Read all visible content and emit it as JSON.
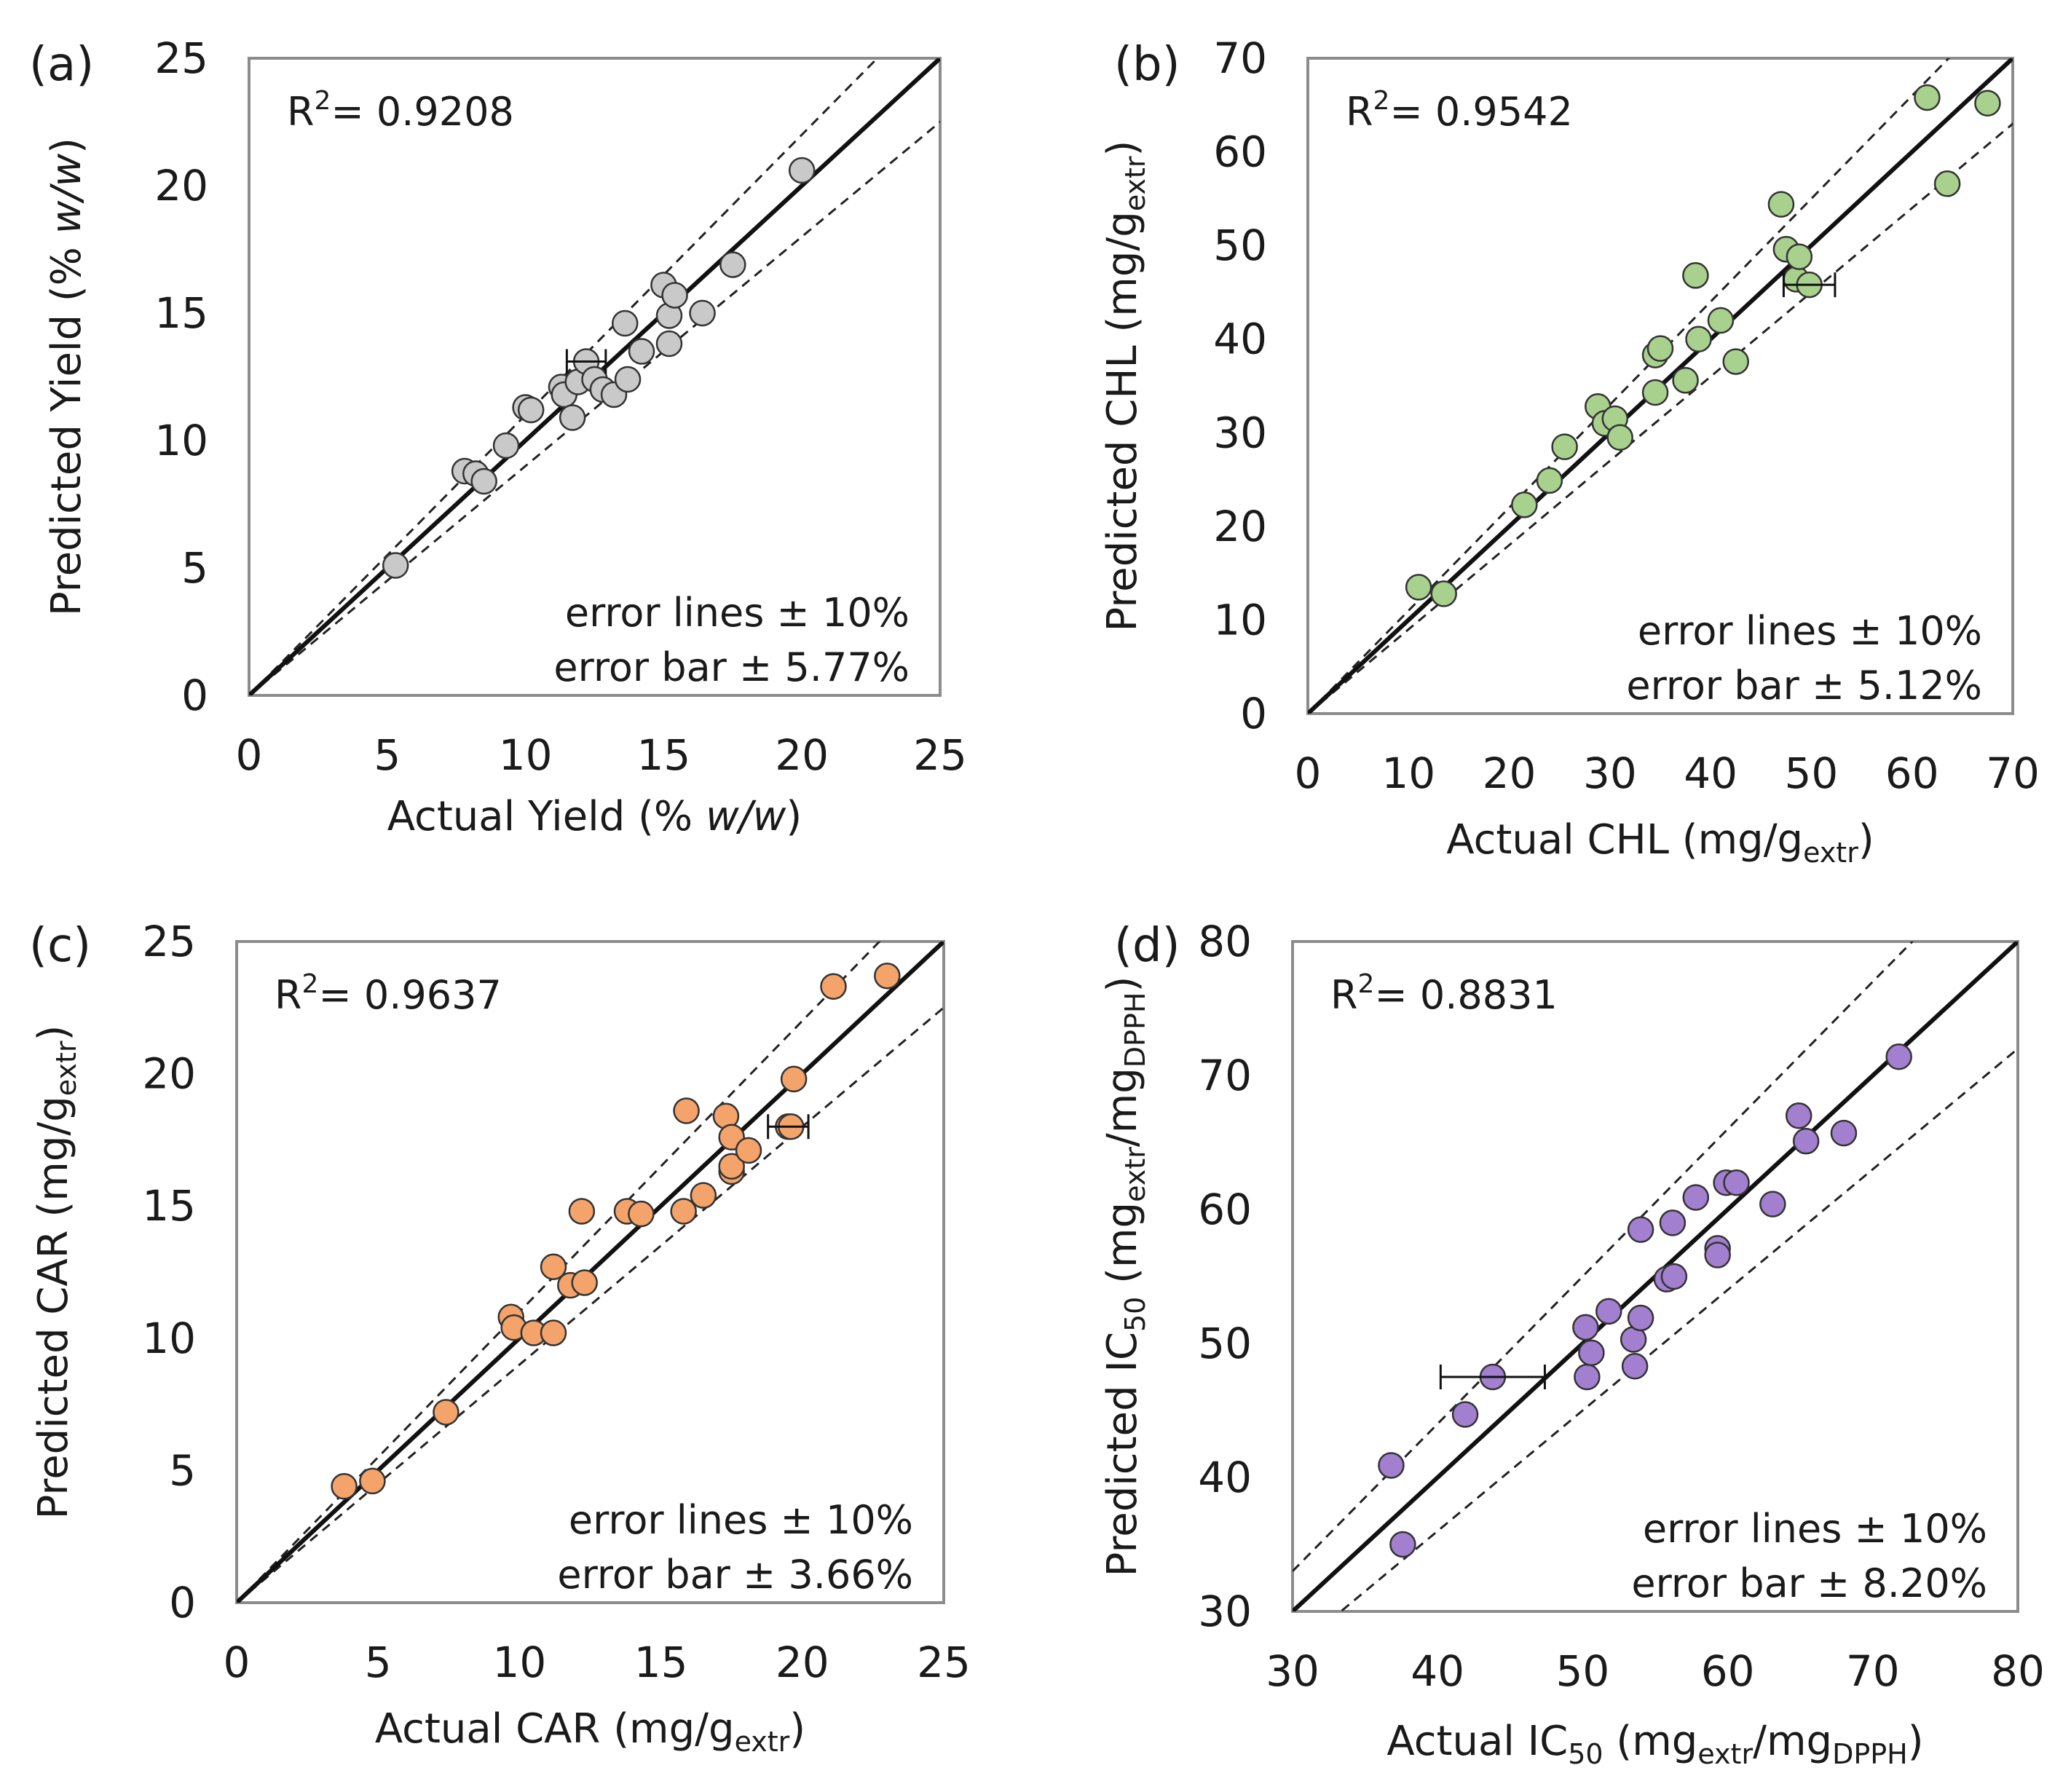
{
  "chart_data": [
    {
      "type": "scatter",
      "panel_label": "(a)",
      "r2_label": "R²= 0.9208",
      "r2_prefix": "R",
      "r2_sup": "2",
      "r2_value": "= 0.9208",
      "xlabel_parts": [
        {
          "t": "Actual Yield  (% "
        },
        {
          "t": "w/w",
          "i": true
        },
        {
          "t": ")"
        }
      ],
      "ylabel_parts": [
        {
          "t": "Predicted Yield  (% "
        },
        {
          "t": "w/w",
          "i": true
        },
        {
          "t": ")"
        }
      ],
      "xlim": [
        0,
        25
      ],
      "ylim": [
        0,
        25
      ],
      "xticks": [
        0,
        5,
        10,
        15,
        20,
        25
      ],
      "yticks": [
        0,
        5,
        10,
        15,
        20,
        25
      ],
      "error_lines_label": "error lines  ± 10%",
      "error_bar_label": "error bar ± 5.77%",
      "error_lines_pct": 10,
      "error_bar_pct": 5.77,
      "marker_color": "#c9c9c9",
      "points": [
        [
          5.3,
          5.1
        ],
        [
          7.8,
          8.8
        ],
        [
          8.2,
          8.7
        ],
        [
          8.5,
          8.4
        ],
        [
          9.3,
          9.8
        ],
        [
          10.0,
          11.3
        ],
        [
          10.2,
          11.2
        ],
        [
          11.3,
          12.1
        ],
        [
          11.4,
          11.8
        ],
        [
          11.7,
          10.9
        ],
        [
          11.9,
          12.3
        ],
        [
          12.2,
          13.1
        ],
        [
          12.5,
          12.4
        ],
        [
          12.8,
          12.0
        ],
        [
          13.2,
          11.8
        ],
        [
          13.6,
          14.6
        ],
        [
          13.7,
          12.4
        ],
        [
          14.2,
          13.5
        ],
        [
          15.0,
          16.1
        ],
        [
          15.2,
          14.9
        ],
        [
          15.2,
          13.8
        ],
        [
          15.4,
          15.7
        ],
        [
          16.4,
          15.0
        ],
        [
          17.5,
          16.9
        ],
        [
          20.0,
          20.6
        ]
      ],
      "error_bar_point": [
        12.2,
        13.1
      ]
    },
    {
      "type": "scatter",
      "panel_label": "(b)",
      "r2_label": "R²= 0.9542",
      "r2_prefix": "R",
      "r2_sup": "2",
      "r2_value": "= 0.9542",
      "xlabel_parts": [
        {
          "t": "Actual CHL (mg/g"
        },
        {
          "t": "extr",
          "sub": true
        },
        {
          "t": ")"
        }
      ],
      "ylabel_parts": [
        {
          "t": "Predicted CHL (mg/g"
        },
        {
          "t": "extr",
          "sub": true
        },
        {
          "t": ")"
        }
      ],
      "xlim": [
        0,
        70
      ],
      "ylim": [
        0,
        70
      ],
      "xticks": [
        0,
        10,
        20,
        30,
        40,
        50,
        60,
        70
      ],
      "yticks": [
        0,
        10,
        20,
        30,
        40,
        50,
        60,
        70
      ],
      "error_lines_label": "error lines  ± 10%",
      "error_bar_label": "error bar ±  5.12%",
      "error_lines_pct": 10,
      "error_bar_pct": 5.12,
      "marker_color": "#a9d18e",
      "points": [
        [
          11.0,
          13.5
        ],
        [
          13.5,
          12.8
        ],
        [
          21.5,
          22.3
        ],
        [
          24.0,
          24.9
        ],
        [
          25.5,
          28.5
        ],
        [
          28.8,
          32.8
        ],
        [
          29.5,
          31.0
        ],
        [
          30.5,
          31.5
        ],
        [
          31.0,
          29.5
        ],
        [
          34.5,
          34.3
        ],
        [
          34.5,
          38.3
        ],
        [
          35.0,
          39.0
        ],
        [
          37.5,
          35.6
        ],
        [
          38.5,
          46.8
        ],
        [
          38.8,
          40.0
        ],
        [
          41.0,
          42.0
        ],
        [
          42.5,
          37.6
        ],
        [
          47.0,
          54.4
        ],
        [
          47.5,
          49.6
        ],
        [
          48.5,
          46.4
        ],
        [
          48.8,
          48.8
        ],
        [
          49.8,
          45.8
        ],
        [
          61.5,
          65.8
        ],
        [
          63.5,
          56.6
        ],
        [
          67.5,
          65.2
        ]
      ],
      "error_bar_point": [
        49.8,
        45.8
      ]
    },
    {
      "type": "scatter",
      "panel_label": "(c)",
      "r2_label": "R²= 0.9637",
      "r2_prefix": "R",
      "r2_sup": "2",
      "r2_value": "= 0.9637",
      "xlabel_parts": [
        {
          "t": "Actual CAR (mg/g"
        },
        {
          "t": "extr",
          "sub": true
        },
        {
          "t": ")"
        }
      ],
      "ylabel_parts": [
        {
          "t": "Predicted CAR (mg/g"
        },
        {
          "t": "extr",
          "sub": true
        },
        {
          "t": ")"
        }
      ],
      "xlim": [
        0,
        25
      ],
      "ylim": [
        0,
        25
      ],
      "xticks": [
        0,
        5,
        10,
        15,
        20,
        25
      ],
      "yticks": [
        0,
        5,
        10,
        15,
        20,
        25
      ],
      "error_lines_label": "error lines  ± 10%",
      "error_bar_label": "error bar ±  3.66%",
      "error_lines_pct": 10,
      "error_bar_pct": 3.66,
      "marker_color": "#f4a46a",
      "points": [
        [
          3.8,
          4.4
        ],
        [
          4.8,
          4.6
        ],
        [
          7.4,
          7.2
        ],
        [
          9.7,
          10.8
        ],
        [
          9.8,
          10.4
        ],
        [
          10.5,
          10.2
        ],
        [
          11.2,
          10.2
        ],
        [
          11.2,
          12.7
        ],
        [
          11.8,
          12.0
        ],
        [
          12.2,
          14.8
        ],
        [
          12.3,
          12.1
        ],
        [
          13.8,
          14.8
        ],
        [
          14.3,
          14.7
        ],
        [
          15.8,
          14.8
        ],
        [
          15.9,
          18.6
        ],
        [
          16.5,
          15.4
        ],
        [
          17.3,
          18.4
        ],
        [
          17.5,
          17.6
        ],
        [
          17.5,
          16.3
        ],
        [
          17.5,
          16.5
        ],
        [
          18.1,
          17.1
        ],
        [
          19.5,
          18.0
        ],
        [
          19.6,
          18.0
        ],
        [
          19.7,
          19.8
        ],
        [
          21.1,
          23.3
        ],
        [
          23.0,
          23.7
        ]
      ],
      "error_bar_point": [
        19.5,
        18.0
      ]
    },
    {
      "type": "scatter",
      "panel_label": "(d)",
      "r2_label": "R²= 0.8831",
      "r2_prefix": "R",
      "r2_sup": "2",
      "r2_value": "= 0.8831",
      "xlabel_parts": [
        {
          "t": "Actual IC"
        },
        {
          "t": "50",
          "sub": true
        },
        {
          "t": " (mg"
        },
        {
          "t": "extr",
          "sub": true
        },
        {
          "t": "/mg"
        },
        {
          "t": "DPPH",
          "sub": true
        },
        {
          "t": ")"
        }
      ],
      "ylabel_parts": [
        {
          "t": "Predicted IC"
        },
        {
          "t": "50",
          "sub": true
        },
        {
          "t": " (mg"
        },
        {
          "t": "extr",
          "sub": true
        },
        {
          "t": "/mg"
        },
        {
          "t": "DPPH",
          "sub": true
        },
        {
          "t": ")"
        }
      ],
      "xlim": [
        30,
        80
      ],
      "ylim": [
        30,
        80
      ],
      "xticks": [
        30,
        40,
        50,
        60,
        70,
        80
      ],
      "yticks": [
        30,
        40,
        50,
        60,
        70,
        80
      ],
      "error_lines_label": "error lines  ± 10%",
      "error_bar_label": "error bar ± 8.20%",
      "error_lines_pct": 10,
      "error_bar_pct": 8.2,
      "marker_color": "#a37fd0",
      "points": [
        [
          36.8,
          40.9
        ],
        [
          37.6,
          35.0
        ],
        [
          41.9,
          44.7
        ],
        [
          43.8,
          47.5
        ],
        [
          50.2,
          51.2
        ],
        [
          50.3,
          47.5
        ],
        [
          50.6,
          49.3
        ],
        [
          51.8,
          52.4
        ],
        [
          53.5,
          50.3
        ],
        [
          53.6,
          48.3
        ],
        [
          54.0,
          58.5
        ],
        [
          54.0,
          51.9
        ],
        [
          55.8,
          54.8
        ],
        [
          56.2,
          59.0
        ],
        [
          56.3,
          55.0
        ],
        [
          57.8,
          60.9
        ],
        [
          59.3,
          57.1
        ],
        [
          59.3,
          56.6
        ],
        [
          59.9,
          62.0
        ],
        [
          60.6,
          62.0
        ],
        [
          63.1,
          60.4
        ],
        [
          64.9,
          67.0
        ],
        [
          65.4,
          65.1
        ],
        [
          68.0,
          65.7
        ],
        [
          71.8,
          71.4
        ]
      ],
      "error_bar_point": [
        43.8,
        47.5
      ]
    }
  ]
}
